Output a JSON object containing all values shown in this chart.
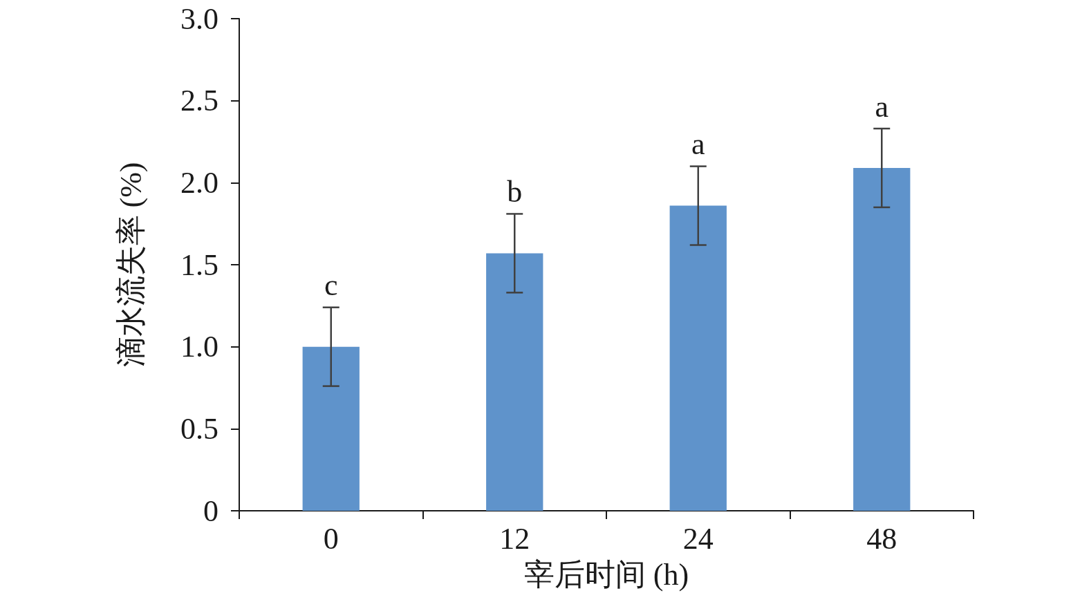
{
  "chart_data": {
    "type": "bar",
    "xlabel": "宰后时间 (h)",
    "ylabel": "滴水流失率 (%)",
    "categories": [
      "0",
      "12",
      "24",
      "48"
    ],
    "values": [
      1.0,
      1.57,
      1.86,
      2.09
    ],
    "errors": [
      0.24,
      0.24,
      0.24,
      0.24
    ],
    "color": "#5f93cb",
    "ylim": [
      0,
      3
    ],
    "yticks": [
      0,
      {
        "value": 0.5,
        "label": "0.5"
      },
      {
        "value": 1,
        "label": "1.0"
      },
      {
        "value": 1.5,
        "label": "1.5"
      },
      {
        "value": 2,
        "label": "2.0"
      },
      {
        "value": 2.5,
        "label": "2.5"
      },
      {
        "value": 3,
        "label": "3.0"
      }
    ],
    "grid": false,
    "annotations": [
      {
        "text": "c",
        "x": "0",
        "y": 1.24
      },
      {
        "text": "b",
        "x": "12",
        "y": 1.81
      },
      {
        "text": "a",
        "x": "24",
        "y": 2.1
      },
      {
        "text": "a",
        "x": "48",
        "y": 2.33
      }
    ]
  }
}
